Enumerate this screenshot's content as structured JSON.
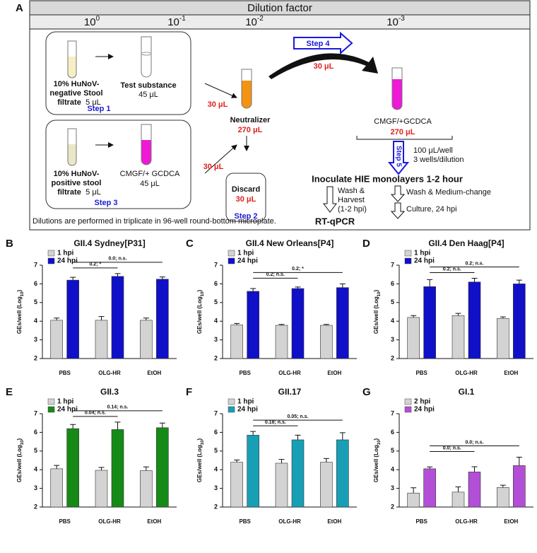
{
  "diagram": {
    "panel": "A",
    "header": "Dilution factor",
    "factors": [
      {
        "base": "10",
        "exp": "0"
      },
      {
        "base": "10",
        "exp": "-1"
      },
      {
        "base": "10",
        "exp": "-2"
      },
      {
        "base": "10",
        "exp": "-3"
      }
    ],
    "step1": {
      "source": [
        "10% HuNoV-",
        "negative Stool",
        "filtrate"
      ],
      "source_amount": "5 μL",
      "target": "Test substance",
      "target_amount": "45 μL",
      "step": "Step 1"
    },
    "step3": {
      "source": [
        "10% HuNoV-",
        "positive stool",
        "filtrate"
      ],
      "source_amount": "5 μL",
      "target": "CMGF/+ GCDCA",
      "target_amount": "45 μL",
      "step": "Step 3"
    },
    "transfer_top": "30 μL",
    "transfer_bottom": "30 μL",
    "neutralizer": "Neutralizer",
    "neutralizer_amount": "270 μL",
    "discard": "Discard",
    "discard_amount": "30 μL",
    "step2": "Step 2",
    "step4": "Step 4",
    "step4_amount": "30 μL",
    "final": "CMGF/+GCDCA",
    "final_amount": "270 μL",
    "step5": "Step 5",
    "per_well": "100 μL/well",
    "wells": "3 wells/dilution",
    "inoculate": "Inoculate HIE monolayers 1-2 hour",
    "left_branch": [
      "Wash &",
      "Harvest",
      "(1-2 hpi)"
    ],
    "right_branch": [
      "Wash & Medium-change",
      "Culture, 24 hpi"
    ],
    "readout": "RT-qPCR",
    "note": "Dilutions are performed in triplicate in 96-well round-bottom microplate."
  },
  "chart_data": [
    {
      "type": "bar",
      "panel": "B",
      "title": "GII.4 Sydney[P31]",
      "ylabel": {
        "text": "GEs/well (Log",
        "sub": "10",
        "end": ")"
      },
      "categories": [
        "PBS",
        "OLG-HR",
        "EtOH"
      ],
      "ylim": [
        2,
        7
      ],
      "yticks": [
        2,
        3,
        4,
        5,
        6,
        7
      ],
      "series": [
        {
          "name": "1 hpi",
          "color": "#d3d3d3",
          "values": [
            4.05,
            4.05,
            4.05
          ],
          "errors": [
            0.12,
            0.2,
            0.12
          ]
        },
        {
          "name": "24 hpi",
          "color": "#1010c8",
          "values": [
            6.2,
            6.4,
            6.25
          ],
          "errors": [
            0.15,
            0.15,
            0.12
          ]
        }
      ],
      "comparisons": [
        {
          "label": "0.2; *",
          "categories": [
            "PBS",
            "OLG-HR"
          ]
        },
        {
          "label": "0.0; n.s.",
          "categories": [
            "PBS",
            "EtOH"
          ]
        }
      ]
    },
    {
      "type": "bar",
      "panel": "C",
      "title": "GII.4 New Orleans[P4]",
      "ylabel": {
        "text": "GEs/well (Log",
        "sub": "10",
        "end": ")"
      },
      "categories": [
        "PBS",
        "OLG-HR",
        "EtOH"
      ],
      "ylim": [
        2,
        7
      ],
      "yticks": [
        2,
        3,
        4,
        5,
        6,
        7
      ],
      "series": [
        {
          "name": "1 hpi",
          "color": "#d3d3d3",
          "values": [
            3.8,
            3.78,
            3.78
          ],
          "errors": [
            0.08,
            0.05,
            0.05
          ]
        },
        {
          "name": "24 hpi",
          "color": "#1010c8",
          "values": [
            5.6,
            5.75,
            5.8
          ],
          "errors": [
            0.15,
            0.08,
            0.2
          ]
        }
      ],
      "comparisons": [
        {
          "label": "0.2; n.s.",
          "categories": [
            "PBS",
            "OLG-HR"
          ]
        },
        {
          "label": "0.2; *",
          "categories": [
            "PBS",
            "EtOH"
          ]
        }
      ]
    },
    {
      "type": "bar",
      "panel": "D",
      "title": "GII.4 Den Haag[P4]",
      "ylabel": {
        "text": "GEs/well (Log",
        "sub": "10",
        "end": ")"
      },
      "categories": [
        "PBS",
        "OLG-HR",
        "EtOH"
      ],
      "ylim": [
        2,
        7
      ],
      "yticks": [
        2,
        3,
        4,
        5,
        6,
        7
      ],
      "series": [
        {
          "name": "1 hpi",
          "color": "#d3d3d3",
          "values": [
            4.2,
            4.3,
            4.15
          ],
          "errors": [
            0.1,
            0.12,
            0.08
          ]
        },
        {
          "name": "24 hpi",
          "color": "#1010c8",
          "values": [
            5.85,
            6.1,
            6.0
          ],
          "errors": [
            0.38,
            0.2,
            0.2
          ]
        }
      ],
      "comparisons": [
        {
          "label": "0.2; n.s.",
          "categories": [
            "PBS",
            "OLG-HR"
          ]
        },
        {
          "label": "0.2; n.s.",
          "categories": [
            "PBS",
            "EtOH"
          ]
        }
      ]
    },
    {
      "type": "bar",
      "panel": "E",
      "title": "GII.3",
      "ylabel": {
        "text": "GEs/well (Log",
        "sub": "10",
        "end": ")"
      },
      "categories": [
        "PBS",
        "OLG-HR",
        "EtOH"
      ],
      "ylim": [
        2,
        7
      ],
      "yticks": [
        2,
        3,
        4,
        5,
        6,
        7
      ],
      "series": [
        {
          "name": "1 hpi",
          "color": "#d3d3d3",
          "values": [
            4.05,
            3.97,
            3.95
          ],
          "errors": [
            0.18,
            0.15,
            0.2
          ]
        },
        {
          "name": "24 hpi",
          "color": "#168a16",
          "values": [
            6.2,
            6.15,
            6.25
          ],
          "errors": [
            0.22,
            0.4,
            0.25
          ]
        }
      ],
      "comparisons": [
        {
          "label": "0.04; n.s.",
          "categories": [
            "PBS",
            "OLG-HR"
          ]
        },
        {
          "label": "0.14; n.s.",
          "categories": [
            "PBS",
            "EtOH"
          ]
        }
      ]
    },
    {
      "type": "bar",
      "panel": "F",
      "title": "GII.17",
      "ylabel": {
        "text": "GEs/well (Log",
        "sub": "10",
        "end": ")"
      },
      "categories": [
        "PBS",
        "OLG-HR",
        "EtOH"
      ],
      "ylim": [
        2,
        7
      ],
      "yticks": [
        2,
        3,
        4,
        5,
        6,
        7
      ],
      "series": [
        {
          "name": "1 hpi",
          "color": "#d3d3d3",
          "values": [
            4.4,
            4.35,
            4.4
          ],
          "errors": [
            0.12,
            0.2,
            0.2
          ]
        },
        {
          "name": "24 hpi",
          "color": "#189fb6",
          "values": [
            5.85,
            5.6,
            5.6
          ],
          "errors": [
            0.2,
            0.25,
            0.38
          ]
        }
      ],
      "comparisons": [
        {
          "label": "0.18; n.s.",
          "categories": [
            "PBS",
            "OLG-HR"
          ]
        },
        {
          "label": "0.05; n.s.",
          "categories": [
            "PBS",
            "EtOH"
          ]
        }
      ]
    },
    {
      "type": "bar",
      "panel": "G",
      "title": "GI.1",
      "ylabel": {
        "text": "GEs/well (Log",
        "sub": "10",
        "end": ")"
      },
      "categories": [
        "PBS",
        "OLG-HR",
        "EtOH"
      ],
      "ylim": [
        2,
        7
      ],
      "yticks": [
        2,
        3,
        4,
        5,
        6,
        7
      ],
      "series": [
        {
          "name": "2 hpi",
          "color": "#d3d3d3",
          "values": [
            2.75,
            2.8,
            3.05
          ],
          "errors": [
            0.28,
            0.28,
            0.12
          ]
        },
        {
          "name": "24 hpi",
          "color": "#b24fd6",
          "values": [
            4.05,
            3.88,
            4.22
          ],
          "errors": [
            0.1,
            0.28,
            0.45
          ]
        }
      ],
      "comparisons": [
        {
          "label": "0.0; n.s.",
          "categories": [
            "PBS",
            "OLG-HR"
          ]
        },
        {
          "label": "0.0; n.s.",
          "categories": [
            "PBS",
            "EtOH"
          ]
        }
      ]
    }
  ]
}
